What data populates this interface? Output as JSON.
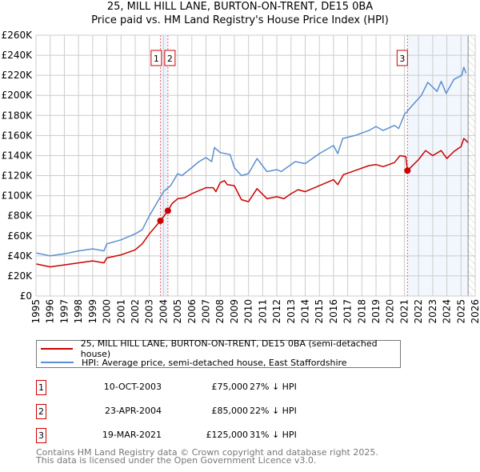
{
  "title_line1": "25, MILL HILL LANE, BURTON-ON-TRENT, DE15 0BA",
  "title_line2": "Price paid vs. HM Land Registry's House Price Index (HPI)",
  "chart_data": {
    "type": "line",
    "xlim": [
      1995,
      2026
    ],
    "ylim": [
      0,
      260000
    ],
    "yticks": [
      0,
      20000,
      40000,
      60000,
      80000,
      100000,
      120000,
      140000,
      160000,
      180000,
      200000,
      220000,
      240000,
      260000
    ],
    "ytick_labels": [
      "£0",
      "£20K",
      "£40K",
      "£60K",
      "£80K",
      "£100K",
      "£120K",
      "£140K",
      "£160K",
      "£180K",
      "£200K",
      "£220K",
      "£240K",
      "£260K"
    ],
    "xticks": [
      "1995",
      "1996",
      "1997",
      "1998",
      "1999",
      "2000",
      "2001",
      "2002",
      "2003",
      "2004",
      "2005",
      "2006",
      "2007",
      "2008",
      "2009",
      "2010",
      "2011",
      "2012",
      "2013",
      "2014",
      "2015",
      "2016",
      "2017",
      "2018",
      "2019",
      "2020",
      "2021",
      "2022",
      "2023",
      "2024",
      "2025",
      "2026"
    ],
    "grid": true,
    "series": [
      {
        "name": "25, MILL HILL LANE, BURTON-ON-TRENT, DE15 0BA (semi-detached house)",
        "color": "#cc0000",
        "x": [
          1995,
          1996,
          1997,
          1998,
          1999,
          1999.8,
          2000,
          2001,
          2002,
          2002.5,
          2003,
          2003.78,
          2004.31,
          2004.6,
          2005,
          2005.5,
          2006,
          2006.5,
          2007,
          2007.5,
          2007.7,
          2008,
          2008.3,
          2008.5,
          2009,
          2009.5,
          2010,
          2010.6,
          2011.3,
          2012,
          2012.5,
          2013,
          2013.5,
          2014,
          2015,
          2016,
          2016.3,
          2016.7,
          2017.5,
          2018.5,
          2019,
          2019.5,
          2020.3,
          2020.7,
          2021.1,
          2021.22,
          2021.5,
          2022,
          2022.5,
          2023,
          2023.6,
          2024,
          2024.5,
          2025,
          2025.2,
          2025.5
        ],
        "y": [
          32000,
          29000,
          31000,
          33000,
          35000,
          33000,
          38000,
          41000,
          46000,
          52000,
          62000,
          75000,
          85000,
          92000,
          97000,
          98000,
          102000,
          105000,
          108000,
          108000,
          104000,
          113000,
          115000,
          111000,
          110000,
          96000,
          94000,
          107000,
          97000,
          99000,
          97000,
          102000,
          106000,
          104000,
          110000,
          116000,
          111000,
          121000,
          125000,
          130000,
          131000,
          129000,
          133000,
          140000,
          139000,
          125000,
          129000,
          136000,
          145000,
          140000,
          145000,
          137000,
          144000,
          149000,
          157000,
          153000
        ]
      },
      {
        "name": "HPI: Average price, semi-detached house, East Staffordshire",
        "color": "#5b8fd0",
        "x": [
          1995,
          1996,
          1997,
          1998,
          1999,
          1999.8,
          2000,
          2001,
          2002,
          2002.5,
          2003,
          2003.5,
          2004,
          2004.5,
          2005,
          2005.3,
          2006,
          2006.5,
          2007,
          2007.4,
          2007.6,
          2008,
          2008.7,
          2009,
          2009.5,
          2010,
          2010.6,
          2011.3,
          2012,
          2012.3,
          2013.3,
          2014,
          2015,
          2016,
          2016.3,
          2016.65,
          2017.5,
          2018.5,
          2019,
          2019.5,
          2020.3,
          2020.6,
          2021,
          2021.5,
          2022.2,
          2022.65,
          2023.3,
          2023.6,
          2023.95,
          2024.5,
          2025.05,
          2025.2,
          2025.35
        ],
        "y": [
          43000,
          40000,
          42000,
          45000,
          47000,
          45000,
          52000,
          56000,
          62000,
          66000,
          80000,
          92000,
          104000,
          110000,
          122000,
          120000,
          128000,
          134000,
          138000,
          134000,
          148000,
          143000,
          141000,
          128000,
          120000,
          122000,
          137000,
          124000,
          126000,
          124000,
          134000,
          132000,
          142000,
          150000,
          142000,
          157000,
          160000,
          165000,
          169000,
          165000,
          170000,
          167000,
          181000,
          189000,
          200000,
          213000,
          204000,
          214000,
          202000,
          216000,
          220000,
          228000,
          222000
        ]
      }
    ],
    "annotations": [
      {
        "label": "1",
        "x": 2003.78,
        "y": 75000
      },
      {
        "label": "2",
        "x": 2004.31,
        "y": 85000
      },
      {
        "label": "3",
        "x": 2021.22,
        "y": 125000
      }
    ],
    "forecast_from": 2025.5,
    "legend": "below"
  },
  "legend": [
    {
      "label": "25, MILL HILL LANE, BURTON-ON-TRENT, DE15 0BA (semi-detached house)",
      "color": "#cc0000"
    },
    {
      "label": "HPI: Average price, semi-detached house, East Staffordshire",
      "color": "#5b8fd0"
    }
  ],
  "transactions": [
    {
      "num": "1",
      "date": "10-OCT-2003",
      "price": "£75,000",
      "hpi": "27% ↓ HPI"
    },
    {
      "num": "2",
      "date": "23-APR-2004",
      "price": "£85,000",
      "hpi": "22% ↓ HPI"
    },
    {
      "num": "3",
      "date": "19-MAR-2021",
      "price": "£125,000",
      "hpi": "31% ↓ HPI"
    }
  ],
  "footer_line1": "Contains HM Land Registry data © Crown copyright and database right 2025.",
  "footer_line2": "This data is licensed under the Open Government Licence v3.0."
}
